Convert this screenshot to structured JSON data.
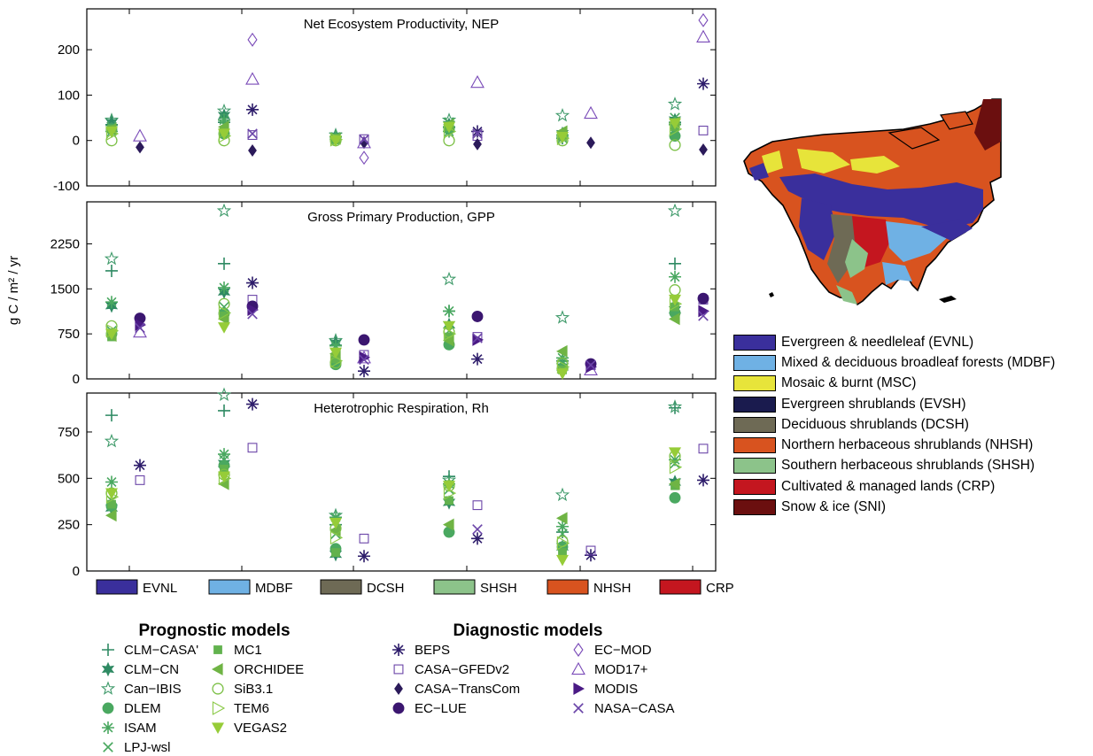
{
  "chart_data": {
    "type": "scatter",
    "categories": [
      "EVNL",
      "MDBF",
      "DCSH",
      "SHSH",
      "NHSH",
      "CRP"
    ],
    "category_colors": [
      "#3a2f9c",
      "#6fb1e4",
      "#6e6a55",
      "#8cc38a",
      "#d8531f",
      "#c4161f"
    ],
    "ylabel": "g C / m² / yr",
    "prognostic_title": "Prognostic models",
    "diagnostic_title": "Diagnostic models",
    "models": [
      {
        "name": "CLM−CASA'",
        "group": "prognostic",
        "marker": "plus",
        "color": "#2f8a63"
      },
      {
        "name": "CLM−CN",
        "group": "prognostic",
        "marker": "star6",
        "color": "#2f8a63"
      },
      {
        "name": "Can−IBIS",
        "group": "prognostic",
        "marker": "pentagram",
        "color": "#3f9a6a"
      },
      {
        "name": "DLEM",
        "group": "prognostic",
        "marker": "circle-filled",
        "color": "#4aa860"
      },
      {
        "name": "ISAM",
        "group": "prognostic",
        "marker": "asterisk",
        "color": "#4aa860"
      },
      {
        "name": "LPJ-wsl",
        "group": "prognostic",
        "marker": "x",
        "color": "#4aa860"
      },
      {
        "name": "MC1",
        "group": "prognostic",
        "marker": "square-filled",
        "color": "#62b24e"
      },
      {
        "name": "ORCHIDEE",
        "group": "prognostic",
        "marker": "tri-left-filled",
        "color": "#6fb444"
      },
      {
        "name": "SiB3.1",
        "group": "prognostic",
        "marker": "circle-open",
        "color": "#7cc046"
      },
      {
        "name": "TEM6",
        "group": "prognostic",
        "marker": "tri-right-open",
        "color": "#8ac946"
      },
      {
        "name": "VEGAS2",
        "group": "prognostic",
        "marker": "tri-down-filled",
        "color": "#96cc38"
      },
      {
        "name": "BEPS",
        "group": "diagnostic",
        "marker": "asterisk",
        "color": "#2e1d6b"
      },
      {
        "name": "CASA−GFEDv2",
        "group": "diagnostic",
        "marker": "square-open",
        "color": "#6b45a8"
      },
      {
        "name": "CASA−TransCom",
        "group": "diagnostic",
        "marker": "diamond-filled",
        "color": "#2b1a5a"
      },
      {
        "name": "EC−LUE",
        "group": "diagnostic",
        "marker": "circle-filled",
        "color": "#3b1670"
      },
      {
        "name": "EC−MOD",
        "group": "diagnostic",
        "marker": "diamond-open",
        "color": "#7a4bb8"
      },
      {
        "name": "MOD17+",
        "group": "diagnostic",
        "marker": "tri-up-open",
        "color": "#7a4bb8"
      },
      {
        "name": "MODIS",
        "group": "diagnostic",
        "marker": "tri-right-filled",
        "color": "#4a1a85"
      },
      {
        "name": "NASA−CASA",
        "group": "diagnostic",
        "marker": "x",
        "color": "#6b45a8"
      }
    ],
    "panels": [
      {
        "title": "Net Ecosystem Productivity, NEP",
        "ylim": [
          -100,
          290
        ],
        "yticks": [
          -100,
          0,
          100,
          200
        ],
        "points": [
          {
            "model": "CLM−CASA'",
            "values": [
              35,
              40,
              8,
              30,
              5,
              40
            ]
          },
          {
            "model": "CLM−CN",
            "values": [
              40,
              55,
              10,
              35,
              15,
              45
            ]
          },
          {
            "model": "Can−IBIS",
            "values": [
              45,
              65,
              12,
              45,
              55,
              80
            ]
          },
          {
            "model": "DLEM",
            "values": [
              25,
              15,
              3,
              25,
              10,
              10
            ]
          },
          {
            "model": "ISAM",
            "values": [
              20,
              45,
              8,
              20,
              12,
              35
            ]
          },
          {
            "model": "LPJ-wsl",
            "values": [
              30,
              35,
              5,
              40,
              5,
              50
            ]
          },
          {
            "model": "MC1",
            "values": [
              25,
              20,
              5,
              30,
              8,
              30
            ]
          },
          {
            "model": "ORCHIDEE",
            "values": [
              25,
              30,
              4,
              35,
              20,
              40
            ]
          },
          {
            "model": "SiB3.1",
            "values": [
              0,
              0,
              0,
              0,
              0,
              -10
            ]
          },
          {
            "model": "TEM6",
            "values": [
              15,
              10,
              2,
              20,
              5,
              25
            ]
          },
          {
            "model": "VEGAS2",
            "values": [
              20,
              15,
              0,
              30,
              8,
              38
            ]
          },
          {
            "model": "BEPS",
            "values": [
              null,
              68,
              null,
              20,
              null,
              125
            ]
          },
          {
            "model": "CASA−GFEDv2",
            "values": [
              null,
              12,
              3,
              10,
              null,
              22
            ]
          },
          {
            "model": "CASA−TransCom",
            "values": [
              -15,
              -22,
              -5,
              -8,
              -5,
              -20
            ]
          },
          {
            "model": "EC−MOD",
            "values": [
              null,
              222,
              -38,
              null,
              null,
              265
            ]
          },
          {
            "model": "MOD17+",
            "values": [
              10,
              135,
              -5,
              128,
              60,
              228
            ]
          },
          {
            "model": "NASA−CASA",
            "values": [
              null,
              15,
              2,
              15,
              null,
              null
            ]
          }
        ]
      },
      {
        "title": "Gross Primary Production, GPP",
        "ylim": [
          0,
          2950
        ],
        "yticks": [
          0,
          750,
          1500,
          2250
        ],
        "points": [
          {
            "model": "CLM−CASA'",
            "values": [
              1800,
              1920,
              560,
              1130,
              300,
              1920
            ]
          },
          {
            "model": "CLM−CN",
            "values": [
              1220,
              1450,
              600,
              900,
              200,
              1150
            ]
          },
          {
            "model": "Can−IBIS",
            "values": [
              2000,
              2800,
              640,
              1660,
              1020,
              2800
            ]
          },
          {
            "model": "DLEM",
            "values": [
              750,
              1090,
              240,
              570,
              180,
              1100
            ]
          },
          {
            "model": "ISAM",
            "values": [
              1280,
              1520,
              550,
              1130,
              350,
              1700
            ]
          },
          {
            "model": "LPJ-wsl",
            "values": [
              800,
              1200,
              420,
              800,
              250,
              1300
            ]
          },
          {
            "model": "MC1",
            "values": [
              700,
              1050,
              330,
              700,
              150,
              1200
            ]
          },
          {
            "model": "ORCHIDEE",
            "values": [
              720,
              1000,
              420,
              640,
              460,
              1000
            ]
          },
          {
            "model": "SiB3.1",
            "values": [
              880,
              1250,
              270,
              780,
              260,
              1480
            ]
          },
          {
            "model": "TEM6",
            "values": [
              800,
              1100,
              300,
              750,
              200,
              1250
            ]
          },
          {
            "model": "VEGAS2",
            "values": [
              750,
              860,
              440,
              880,
              90,
              1320
            ]
          },
          {
            "model": "BEPS",
            "values": [
              null,
              1600,
              130,
              330,
              null,
              null
            ]
          },
          {
            "model": "CASA−GFEDv2",
            "values": [
              null,
              1320,
              400,
              700,
              230,
              1320
            ]
          },
          {
            "model": "EC−LUE",
            "values": [
              1010,
              1210,
              650,
              1040,
              250,
              1340
            ]
          },
          {
            "model": "MOD17+",
            "values": [
              780,
              null,
              350,
              null,
              150,
              null
            ]
          },
          {
            "model": "MODIS",
            "values": [
              900,
              1150,
              360,
              650,
              200,
              1130
            ]
          },
          {
            "model": "NASA−CASA",
            "values": [
              850,
              1080,
              320,
              680,
              230,
              1050
            ]
          }
        ]
      },
      {
        "title": "Heterotrophic Respiration, Rh",
        "ylim": [
          0,
          960
        ],
        "yticks": [
          0,
          250,
          500,
          750
        ],
        "points": [
          {
            "model": "CLM−CASA'",
            "values": [
              840,
              865,
              250,
              510,
              210,
              880
            ]
          },
          {
            "model": "CLM−CN",
            "values": [
              340,
              580,
              90,
              370,
              130,
              480
            ]
          },
          {
            "model": "Can−IBIS",
            "values": [
              700,
              950,
              300,
              490,
              410,
              885
            ]
          },
          {
            "model": "DLEM",
            "values": [
              350,
              570,
              120,
              210,
              130,
              395
            ]
          },
          {
            "model": "ISAM",
            "values": [
              480,
              630,
              290,
              470,
              240,
              600
            ]
          },
          {
            "model": "LPJ-wsl",
            "values": [
              380,
              600,
              200,
              440,
              200,
              580
            ]
          },
          {
            "model": "MC1",
            "values": [
              360,
              550,
              100,
              380,
              100,
              460
            ]
          },
          {
            "model": "ORCHIDEE",
            "values": [
              300,
              470,
              220,
              250,
              285,
              470
            ]
          },
          {
            "model": "SiB3.1",
            "values": [
              420,
              520,
              230,
              460,
              160,
              620
            ]
          },
          {
            "model": "TEM6",
            "values": [
              400,
              500,
              180,
              420,
              150,
              560
            ]
          },
          {
            "model": "VEGAS2",
            "values": [
              420,
              510,
              260,
              460,
              60,
              640
            ]
          },
          {
            "model": "BEPS",
            "values": [
              570,
              900,
              80,
              175,
              85,
              490
            ]
          },
          {
            "model": "CASA−GFEDv2",
            "values": [
              490,
              665,
              175,
              355,
              110,
              660
            ]
          },
          {
            "model": "NASA−CASA",
            "values": [
              null,
              null,
              null,
              225,
              null,
              null
            ]
          }
        ]
      }
    ]
  },
  "map_legend": [
    {
      "label": "Evergreen & needleleaf (EVNL)",
      "color": "#3a2f9c"
    },
    {
      "label": "Mixed & deciduous broadleaf forests (MDBF)",
      "color": "#6fb1e4"
    },
    {
      "label": "Mosaic & burnt (MSC)",
      "color": "#e7e43a"
    },
    {
      "label": "Evergreen shrublands (EVSH)",
      "color": "#1a1b4e"
    },
    {
      "label": "Deciduous shrublands (DCSH)",
      "color": "#6e6a55"
    },
    {
      "label": "Northern herbaceous shrublands (NHSH)",
      "color": "#d8531f"
    },
    {
      "label": "Southern herbaceous shrublands (SHSH)",
      "color": "#8cc38a"
    },
    {
      "label": "Cultivated & managed lands (CRP)",
      "color": "#c4161f"
    },
    {
      "label": "Snow & ice (SNI)",
      "color": "#6b0f0f"
    }
  ]
}
